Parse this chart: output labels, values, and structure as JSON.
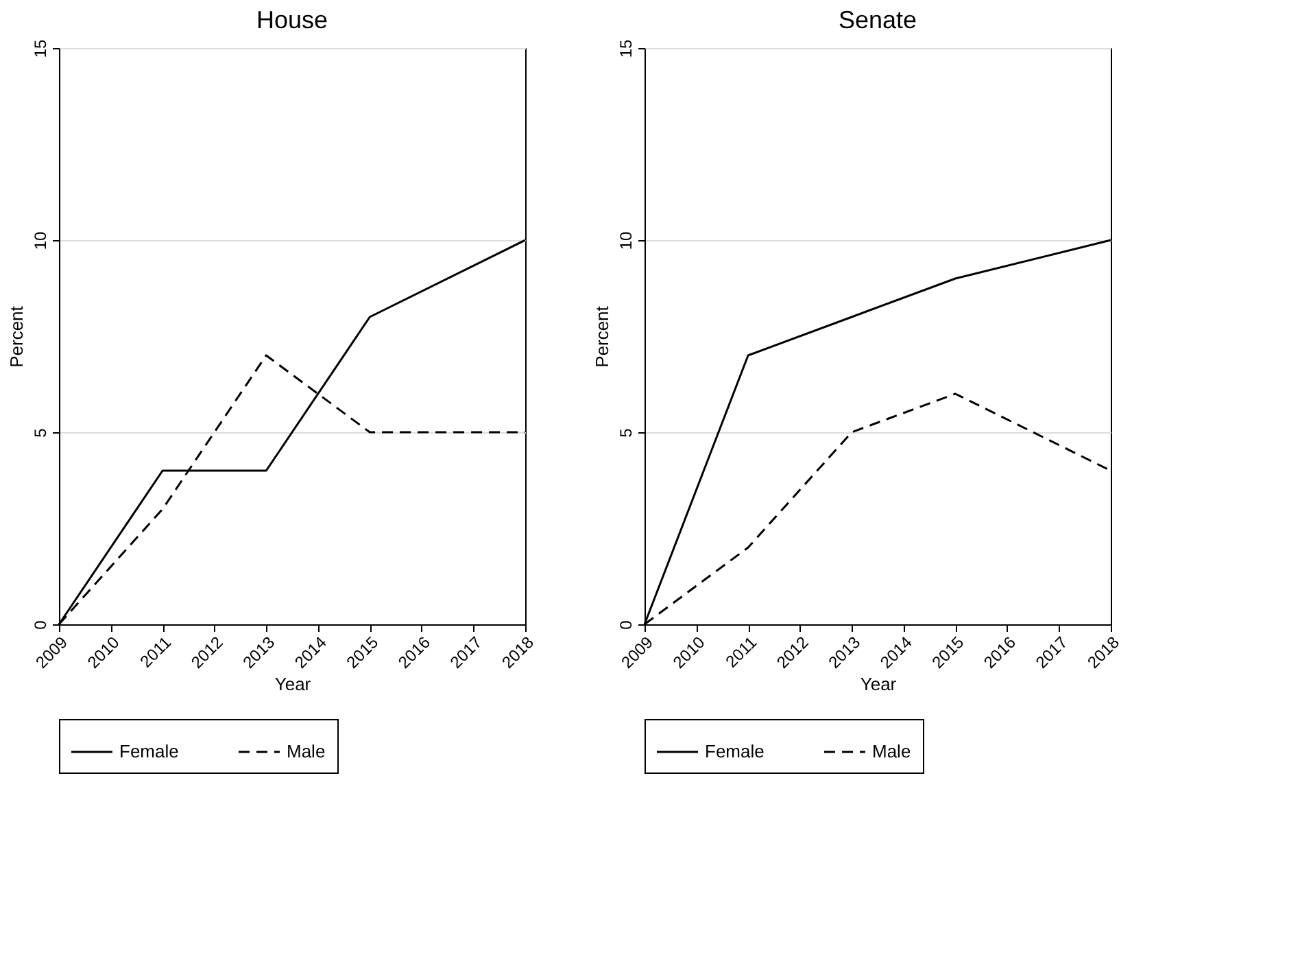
{
  "chart_data": [
    {
      "type": "line",
      "title": "House",
      "xlabel": "Year",
      "ylabel": "Percent",
      "x": [
        2009,
        2011,
        2013,
        2015,
        2018
      ],
      "xlim": [
        2009,
        2018
      ],
      "xticks": [
        2009,
        2010,
        2011,
        2012,
        2013,
        2014,
        2015,
        2016,
        2017,
        2018
      ],
      "ylim": [
        0,
        15
      ],
      "yticks": [
        0,
        5,
        10,
        15
      ],
      "grid": "y",
      "legend": "bottom",
      "series": [
        {
          "name": "Female",
          "color": "#000000",
          "line_style": "solid",
          "values": [
            0,
            4,
            4,
            8,
            10
          ]
        },
        {
          "name": "Male",
          "color": "#000000",
          "line_style": "dashed",
          "values": [
            0,
            3,
            7,
            5,
            5
          ]
        }
      ]
    },
    {
      "type": "line",
      "title": "Senate",
      "xlabel": "Year",
      "ylabel": "Percent",
      "x": [
        2009,
        2011,
        2013,
        2015,
        2018
      ],
      "xlim": [
        2009,
        2018
      ],
      "xticks": [
        2009,
        2010,
        2011,
        2012,
        2013,
        2014,
        2015,
        2016,
        2017,
        2018
      ],
      "ylim": [
        0,
        15
      ],
      "yticks": [
        0,
        5,
        10,
        15
      ],
      "grid": "y",
      "legend": "bottom",
      "series": [
        {
          "name": "Female",
          "color": "#000000",
          "line_style": "solid",
          "values": [
            0,
            7,
            8,
            9,
            10
          ]
        },
        {
          "name": "Male",
          "color": "#000000",
          "line_style": "dashed",
          "values": [
            0,
            2,
            5,
            6,
            4
          ]
        }
      ]
    }
  ]
}
